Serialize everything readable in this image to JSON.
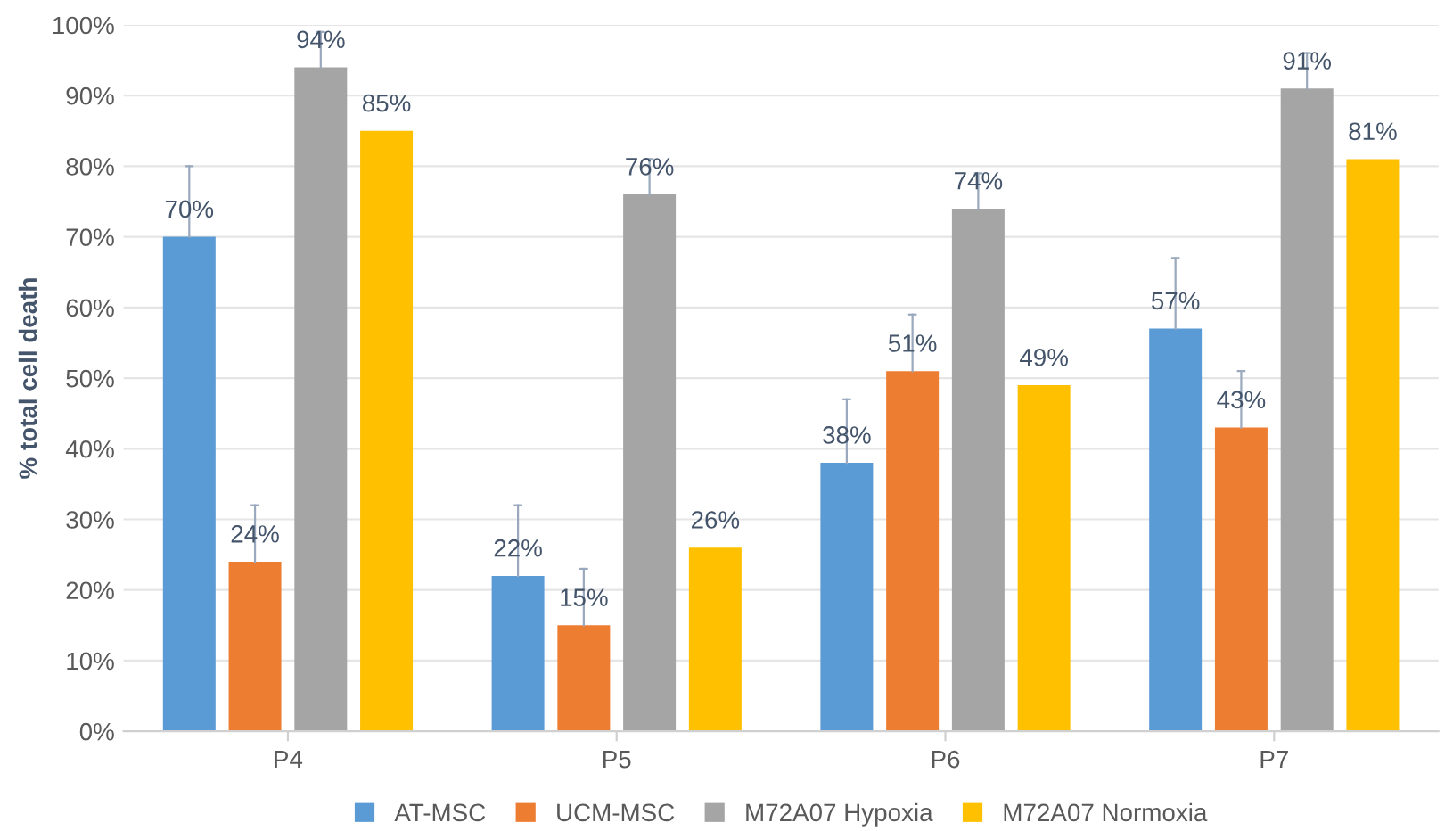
{
  "chart_data": {
    "type": "bar",
    "ylabel": "% total cell death",
    "categories": [
      "P4",
      "P5",
      "P6",
      "P7"
    ],
    "series": [
      {
        "name": "AT-MSC",
        "color": "#5b9bd5",
        "values": [
          70,
          22,
          38,
          57
        ],
        "errors": [
          [
            70,
            80
          ],
          [
            22,
            32
          ],
          [
            38,
            47
          ],
          [
            57,
            67
          ]
        ]
      },
      {
        "name": "UCM-MSC",
        "color": "#ed7d31",
        "values": [
          24,
          15,
          51,
          43
        ],
        "errors": [
          [
            24,
            32
          ],
          [
            15,
            23
          ],
          [
            51,
            59
          ],
          [
            43,
            51
          ]
        ]
      },
      {
        "name": "M72A07 Hypoxia",
        "color": "#a5a5a5",
        "values": [
          94,
          76,
          74,
          91
        ],
        "errors": [
          [
            94,
            99
          ],
          [
            76,
            81
          ],
          [
            74,
            79
          ],
          [
            91,
            96
          ]
        ]
      },
      {
        "name": "M72A07 Normoxia",
        "color": "#ffc000",
        "values": [
          85,
          26,
          49,
          81
        ]
      }
    ],
    "ylim": [
      0,
      100
    ],
    "yticks": [
      {
        "value": 0,
        "label": "0%"
      },
      {
        "value": 10,
        "label": "10%"
      },
      {
        "value": 20,
        "label": "20%"
      },
      {
        "value": 30,
        "label": "30%"
      },
      {
        "value": 40,
        "label": "40%"
      },
      {
        "value": 50,
        "label": "50%"
      },
      {
        "value": 60,
        "label": "60%"
      },
      {
        "value": 70,
        "label": "70%"
      },
      {
        "value": 80,
        "label": "80%"
      },
      {
        "value": 90,
        "label": "90%"
      },
      {
        "value": 100,
        "label": "100%"
      }
    ],
    "value_labels": [
      [
        "70%",
        "22%",
        "38%",
        "57%"
      ],
      [
        "24%",
        "15%",
        "51%",
        "43%"
      ],
      [
        "94%",
        "76%",
        "74%",
        "91%"
      ],
      [
        "85%",
        "26%",
        "49%",
        "81%"
      ]
    ],
    "grid": "y",
    "legend": "bottom"
  }
}
